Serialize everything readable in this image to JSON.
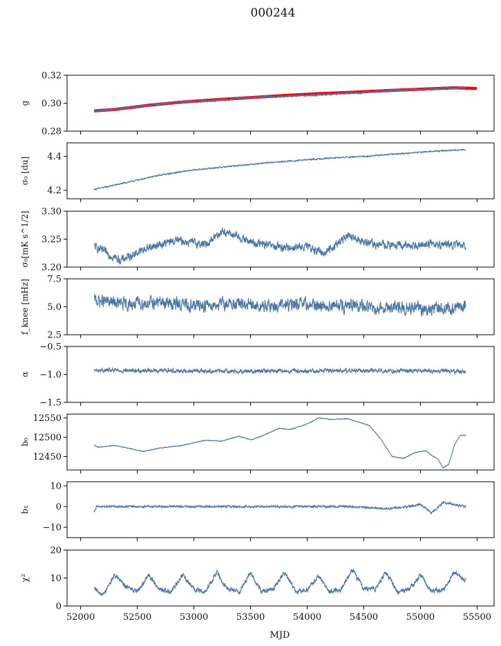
{
  "figure": {
    "title": "000244",
    "xlabel": "MJD"
  },
  "colors": {
    "series": "#4a76a8",
    "overlay": "#ff0000",
    "axis": "#000000"
  },
  "x_axis": {
    "lim": [
      51880,
      55650
    ],
    "ticks": [
      52000,
      52500,
      53000,
      53500,
      54000,
      54500,
      55000,
      55500
    ],
    "tick_labels": [
      "52000",
      "52500",
      "53000",
      "53500",
      "54000",
      "54500",
      "55000",
      "55500"
    ]
  },
  "chart_data": [
    {
      "type": "line",
      "ylabel": "g",
      "ylim": [
        0.28,
        0.32
      ],
      "yticks": [
        0.28,
        0.3,
        0.32
      ],
      "ytick_labels": [
        "0.28",
        "0.30",
        "0.32"
      ],
      "series": [
        {
          "kind": "overlay",
          "x": [
            52120,
            52300,
            52600,
            52900,
            53200,
            53500,
            53800,
            54100,
            54400,
            54700,
            55000,
            55300,
            55500
          ],
          "y": [
            0.2945,
            0.2955,
            0.2985,
            0.3008,
            0.3025,
            0.304,
            0.3055,
            0.3068,
            0.3078,
            0.309,
            0.31,
            0.311,
            0.3105
          ]
        },
        {
          "kind": "main",
          "x": [
            52120,
            52300,
            52600,
            52900,
            53200,
            53500,
            53800,
            54100,
            54400,
            54700,
            55000,
            55300,
            55400
          ],
          "y": [
            0.2945,
            0.2955,
            0.2985,
            0.3008,
            0.302,
            0.304,
            0.305,
            0.306,
            0.3072,
            0.3088,
            0.3098,
            0.3108,
            0.311
          ],
          "noise": 0.0012
        }
      ]
    },
    {
      "type": "line",
      "ylabel": "σ₀ [du]",
      "ylim": [
        4.15,
        4.48
      ],
      "yticks": [
        4.2,
        4.4
      ],
      "ytick_labels": [
        "4.2",
        "4.4"
      ],
      "series": [
        {
          "kind": "main",
          "x": [
            52120,
            52400,
            52700,
            53000,
            53300,
            53600,
            53900,
            54200,
            54500,
            54800,
            55100,
            55400
          ],
          "y": [
            4.205,
            4.245,
            4.29,
            4.32,
            4.34,
            4.36,
            4.375,
            4.39,
            4.4,
            4.415,
            4.43,
            4.44
          ],
          "noise": 0.006
        }
      ]
    },
    {
      "type": "line",
      "ylabel": "σ₀[mK s^1/2]",
      "ylim": [
        3.2,
        3.3
      ],
      "yticks": [
        3.2,
        3.25,
        3.3
      ],
      "ytick_labels": [
        "3.20",
        "3.25",
        "3.30"
      ],
      "series": [
        {
          "kind": "main",
          "x": [
            52120,
            52350,
            52600,
            52850,
            53100,
            53250,
            53500,
            53750,
            54000,
            54150,
            54350,
            54600,
            54850,
            55100,
            55400
          ],
          "y": [
            3.237,
            3.212,
            3.235,
            3.248,
            3.24,
            3.265,
            3.245,
            3.235,
            3.236,
            3.225,
            3.255,
            3.24,
            3.238,
            3.242,
            3.238
          ],
          "noise": 0.012
        }
      ]
    },
    {
      "type": "line",
      "ylabel": "f_knee [mHz]",
      "ylim": [
        2.5,
        7.5
      ],
      "yticks": [
        2.5,
        5.0,
        7.5
      ],
      "ytick_labels": [
        "2.5",
        "5.0",
        "7.5"
      ],
      "series": [
        {
          "kind": "main",
          "x": [
            52120,
            52400,
            52700,
            53000,
            53300,
            53600,
            53900,
            54200,
            54500,
            54800,
            55100,
            55400
          ],
          "y": [
            5.6,
            5.2,
            5.4,
            5.1,
            5.3,
            5.0,
            5.2,
            5.1,
            5.0,
            4.9,
            4.8,
            5.0
          ],
          "noise": 0.9
        }
      ]
    },
    {
      "type": "line",
      "ylabel": "α",
      "ylim": [
        -1.5,
        -0.5
      ],
      "yticks": [
        -1.5,
        -1.0,
        -0.5
      ],
      "ytick_labels": [
        "−1.5",
        "−1.0",
        "−0.5"
      ],
      "series": [
        {
          "kind": "main",
          "x": [
            52120,
            52700,
            53300,
            53900,
            54500,
            55100,
            55400
          ],
          "y": [
            -0.93,
            -0.93,
            -0.94,
            -0.94,
            -0.93,
            -0.94,
            -0.95
          ],
          "noise": 0.06
        }
      ]
    },
    {
      "type": "line",
      "ylabel": "b₀",
      "ylim": [
        12415,
        12560
      ],
      "yticks": [
        12450,
        12500,
        12550
      ],
      "ytick_labels": [
        "12450",
        "12500",
        "12550"
      ],
      "series": [
        {
          "kind": "main",
          "x": [
            52120,
            52150,
            52300,
            52450,
            52550,
            52700,
            52900,
            53100,
            53250,
            53400,
            53500,
            53600,
            53750,
            53850,
            54000,
            54100,
            54200,
            54350,
            54450,
            54550,
            54650,
            54750,
            54850,
            54950,
            55050,
            55100,
            55150,
            55200,
            55250,
            55300,
            55350,
            55400
          ],
          "y": [
            12480,
            12474,
            12479,
            12470,
            12463,
            12472,
            12479,
            12492,
            12490,
            12503,
            12493,
            12503,
            12523,
            12520,
            12534,
            12550,
            12546,
            12548,
            12540,
            12530,
            12495,
            12450,
            12445,
            12460,
            12465,
            12452,
            12445,
            12420,
            12430,
            12480,
            12505,
            12505
          ],
          "noise": 1.5
        }
      ]
    },
    {
      "type": "line",
      "ylabel": "b₁",
      "ylim": [
        -15,
        12
      ],
      "yticks": [
        -10,
        0,
        10
      ],
      "ytick_labels": [
        "−10",
        "0",
        "10"
      ],
      "series": [
        {
          "kind": "main",
          "x": [
            52120,
            52140,
            52400,
            52800,
            53200,
            53600,
            54000,
            54400,
            54700,
            54900,
            55000,
            55100,
            55200,
            55300,
            55400
          ],
          "y": [
            -3,
            0,
            0,
            0,
            0,
            0,
            0,
            0,
            -1,
            0,
            1,
            -3,
            2,
            1,
            0
          ],
          "noise": 0.8
        }
      ]
    },
    {
      "type": "line",
      "ylabel": "χ²",
      "ylim": [
        0,
        20
      ],
      "yticks": [
        0,
        10,
        20
      ],
      "ytick_labels": [
        "0",
        "10",
        "20"
      ],
      "series": [
        {
          "kind": "main",
          "x": [
            52120,
            52200,
            52300,
            52400,
            52500,
            52600,
            52700,
            52800,
            52900,
            53000,
            53100,
            53200,
            53300,
            53400,
            53500,
            53600,
            53700,
            53800,
            53900,
            54000,
            54100,
            54200,
            54300,
            54400,
            54500,
            54600,
            54700,
            54800,
            54900,
            55000,
            55100,
            55200,
            55300,
            55400
          ],
          "y": [
            6,
            4,
            11,
            7,
            5,
            11,
            6,
            5,
            11,
            6,
            5,
            12,
            6,
            5,
            12,
            5,
            6,
            12,
            5,
            6,
            11,
            5,
            6,
            13,
            6,
            6,
            12,
            5,
            6,
            11,
            5,
            6,
            12,
            9
          ],
          "noise": 1.4
        }
      ]
    }
  ]
}
